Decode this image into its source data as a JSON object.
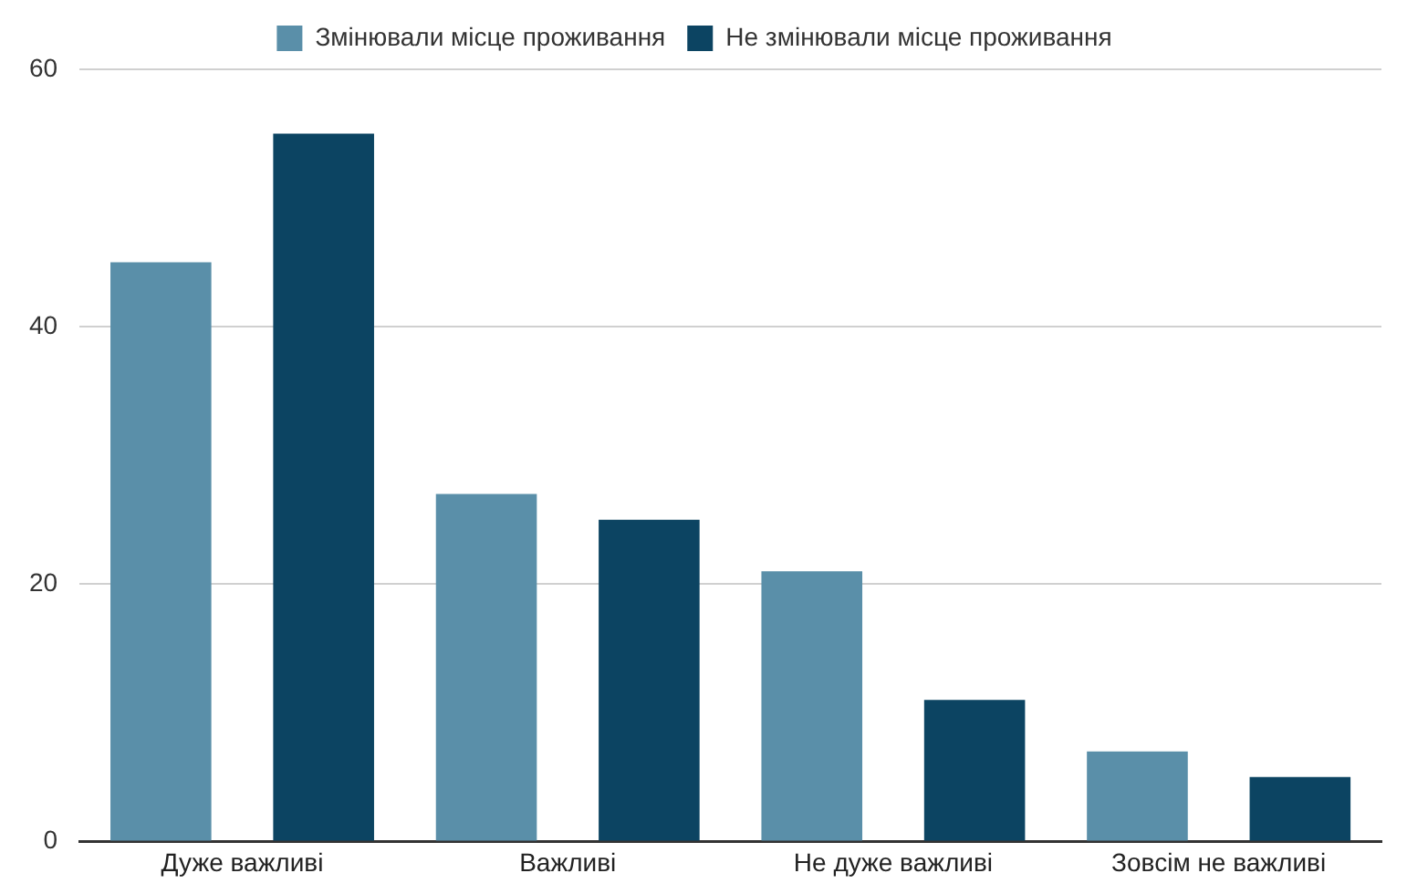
{
  "chart_data": {
    "type": "bar",
    "categories": [
      "Дуже важливі",
      "Важливі",
      "Не дуже важливі",
      "Зовсім не важливі"
    ],
    "series": [
      {
        "name": "Змінювали місце проживання",
        "color": "#5a8fa9",
        "values": [
          45,
          27,
          21,
          7
        ]
      },
      {
        "name": "Не змінювали місце проживання",
        "color": "#0c4462",
        "values": [
          55,
          25,
          11,
          5
        ]
      }
    ],
    "ylim": [
      0,
      60
    ],
    "yticks": [
      0,
      20,
      40,
      60
    ],
    "grid": "y",
    "legend": "top"
  }
}
